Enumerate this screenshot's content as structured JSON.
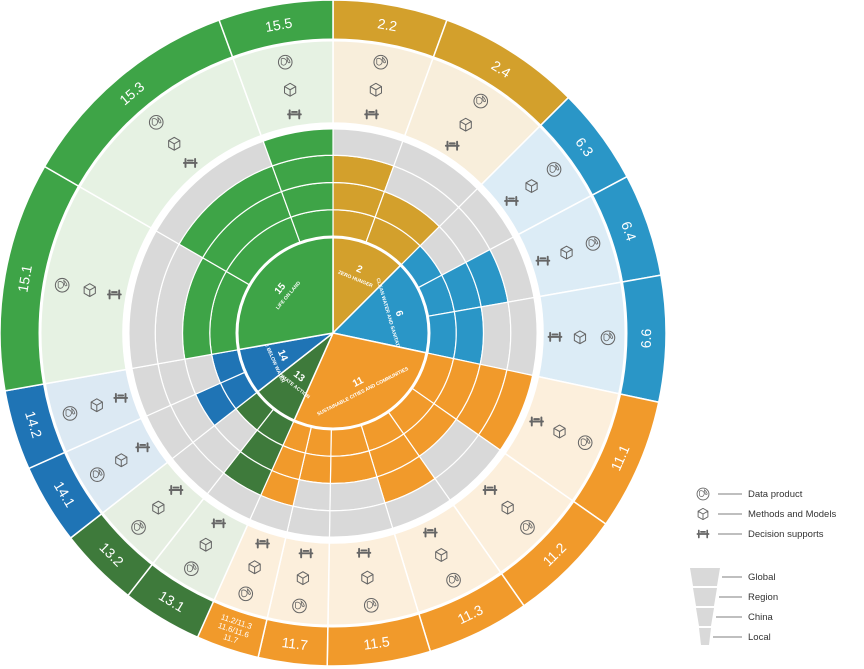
{
  "colors": {
    "goal15": "#3ea447",
    "goal2": "#d3a02c",
    "goal6": "#2a96c7",
    "goal11": "#f19a2b",
    "goal13": "#3e7a3b",
    "goal14": "#1f74b5",
    "grey": "#d9d9d9"
  },
  "goals": [
    {
      "num": "2",
      "name": "ZERO HUNGER",
      "color": "goal2"
    },
    {
      "num": "6",
      "name": "CLEAN WATER AND SANITATION",
      "color": "goal6"
    },
    {
      "num": "11",
      "name": "SUSTAINABLE CITIES AND COMMUNITIES",
      "color": "goal11"
    },
    {
      "num": "13",
      "name": "CLIMATE ACTION",
      "color": "goal13"
    },
    {
      "num": "14",
      "name": "LIFE BELOW WATER",
      "color": "goal14"
    },
    {
      "num": "15",
      "name": "LIFE ON LAND",
      "color": "goal15"
    }
  ],
  "targets": [
    {
      "label": "2.2",
      "color": "goal2",
      "span": 1,
      "levels": 3
    },
    {
      "label": "2.4",
      "color": "goal2",
      "span": 1,
      "levels": 2
    },
    {
      "label": "6.3",
      "color": "goal6",
      "span": 1,
      "levels": 1
    },
    {
      "label": "6.4",
      "color": "goal6",
      "span": 1,
      "levels": 3
    },
    {
      "label": "6.6",
      "color": "goal6",
      "span": 1,
      "levels": 2
    },
    {
      "label": "11.1",
      "color": "goal11",
      "span": 1,
      "levels": 4
    },
    {
      "label": "11.2",
      "color": "goal11",
      "span": 1,
      "levels": 2
    },
    {
      "label": "11.3",
      "color": "goal11",
      "span": 1,
      "levels": 3
    },
    {
      "label": "11.5",
      "color": "goal11",
      "span": 1,
      "levels": 2
    },
    {
      "label": "11.7",
      "color": "goal11",
      "span": 1,
      "levels": 2
    },
    {
      "label": "11.2/11.3\n11.6/11.6\n11.7",
      "color": "goal11",
      "span": 1,
      "levels": 3
    },
    {
      "label": "13.1",
      "color": "goal13",
      "span": 1,
      "levels": 3
    },
    {
      "label": "13.2",
      "color": "goal13",
      "span": 1,
      "levels": 1
    },
    {
      "label": "14.1",
      "color": "goal14",
      "span": 1,
      "levels": 2
    },
    {
      "label": "14.2",
      "color": "goal14",
      "span": 1,
      "levels": 1
    },
    {
      "label": "15.1",
      "color": "goal15",
      "span": 1,
      "levels": 2
    },
    {
      "label": "15.3",
      "color": "goal15",
      "span": 1,
      "levels": 3
    },
    {
      "label": "15.5",
      "color": "goal15",
      "span": 1,
      "levels": 4
    }
  ],
  "legend": {
    "types": [
      {
        "icon": "data-product-icon",
        "label": "Data product"
      },
      {
        "icon": "methods-models-icon",
        "label": "Methods and Models"
      },
      {
        "icon": "decision-supports-icon",
        "label": "Decision supports"
      }
    ],
    "scales": [
      "Global",
      "Region",
      "China",
      "Local"
    ]
  }
}
